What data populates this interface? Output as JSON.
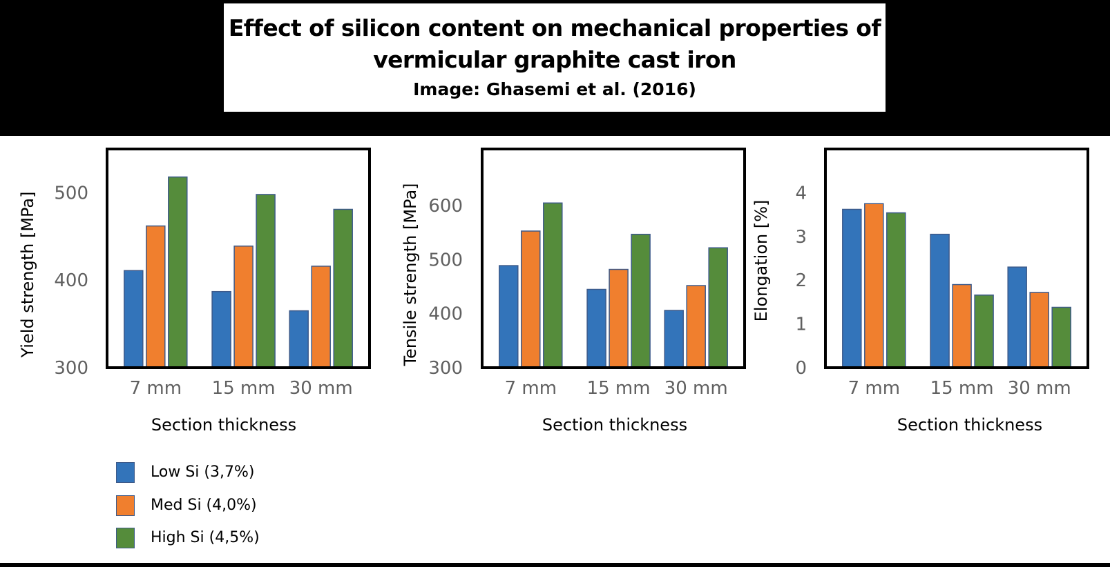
{
  "header": {
    "title_line1": "Effect of silicon content on mechanical properties of",
    "title_line2": "vermicular graphite cast iron",
    "credit": "Image: Ghasemi et al. (2016)"
  },
  "colors": {
    "low_si": "#3374BA",
    "med_si": "#F07F2E",
    "high_si": "#558C3B",
    "bar_edge": "#3d5a8a",
    "axis": "#000000",
    "tick_text": "#606060"
  },
  "legend": [
    {
      "label": "Low Si (3,7%)",
      "color": "#3374BA"
    },
    {
      "label": "Med Si (4,0%)",
      "color": "#F07F2E"
    },
    {
      "label": "High Si (4,5%)",
      "color": "#558C3B"
    }
  ],
  "chart_data": [
    {
      "type": "bar",
      "ylabel": "Yield strength [MPa]",
      "xlabel": "Section thickness",
      "categories": [
        "7 mm",
        "15 mm",
        "30 mm"
      ],
      "ylim": [
        300,
        550
      ],
      "yticks": [
        300,
        400,
        500
      ],
      "series": [
        {
          "name": "Low Si (3,7%)",
          "values": [
            411,
            387,
            365
          ]
        },
        {
          "name": "Med Si (4,0%)",
          "values": [
            462,
            439,
            416
          ]
        },
        {
          "name": "High Si (4,5%)",
          "values": [
            518,
            498,
            481
          ]
        }
      ]
    },
    {
      "type": "bar",
      "ylabel": "Tensile strength [MPa]",
      "xlabel": "Section thickness",
      "categories": [
        "7 mm",
        "15 mm",
        "30 mm"
      ],
      "ylim": [
        300,
        705
      ],
      "yticks": [
        300,
        400,
        500,
        600
      ],
      "series": [
        {
          "name": "Low Si (3,7%)",
          "values": [
            489,
            445,
            406
          ]
        },
        {
          "name": "Med Si (4,0%)",
          "values": [
            553,
            482,
            452
          ]
        },
        {
          "name": "High Si (4,5%)",
          "values": [
            605,
            547,
            522
          ]
        }
      ]
    },
    {
      "type": "bar",
      "ylabel": "Elongation [%]",
      "xlabel": "Section thickness",
      "categories": [
        "7 mm",
        "15 mm",
        "30 mm"
      ],
      "ylim": [
        0,
        5
      ],
      "yticks": [
        0,
        1,
        2,
        3,
        4
      ],
      "series": [
        {
          "name": "Low Si (3,7%)",
          "values": [
            3.62,
            3.05,
            2.3
          ]
        },
        {
          "name": "Med Si (4,0%)",
          "values": [
            3.75,
            1.9,
            1.72
          ]
        },
        {
          "name": "High Si (4,5%)",
          "values": [
            3.54,
            1.66,
            1.38
          ]
        }
      ]
    }
  ]
}
